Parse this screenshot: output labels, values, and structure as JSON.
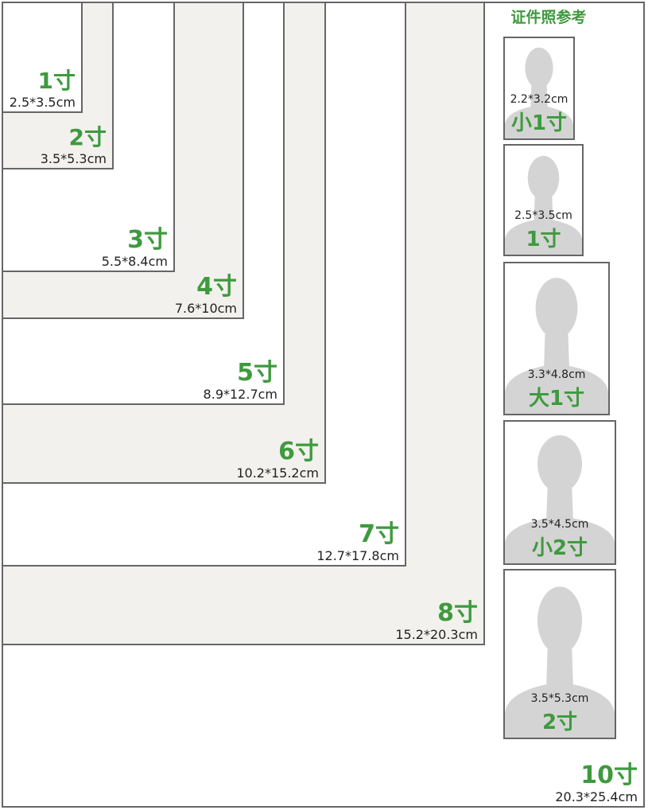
{
  "title": "证件照参考",
  "print_sizes": [
    {
      "label": "1寸",
      "size": "2.5*3.5cm"
    },
    {
      "label": "2寸",
      "size": "3.5*5.3cm"
    },
    {
      "label": "3寸",
      "size": "5.5*8.4cm"
    },
    {
      "label": "4寸",
      "size": "7.6*10cm"
    },
    {
      "label": "5寸",
      "size": "8.9*12.7cm"
    },
    {
      "label": "6寸",
      "size": "10.2*15.2cm"
    },
    {
      "label": "7寸",
      "size": "12.7*17.8cm"
    },
    {
      "label": "8寸",
      "size": "15.2*20.3cm"
    },
    {
      "label": "10寸",
      "size": "20.3*25.4cm"
    }
  ],
  "id_photos": [
    {
      "size": "2.2*3.2cm",
      "label": "小1寸"
    },
    {
      "size": "2.5*3.5cm",
      "label": "1寸"
    },
    {
      "size": "3.3*4.8cm",
      "label": "大1寸"
    },
    {
      "size": "3.5*4.5cm",
      "label": "小2寸"
    },
    {
      "size": "3.5*5.3cm",
      "label": "2寸"
    }
  ]
}
